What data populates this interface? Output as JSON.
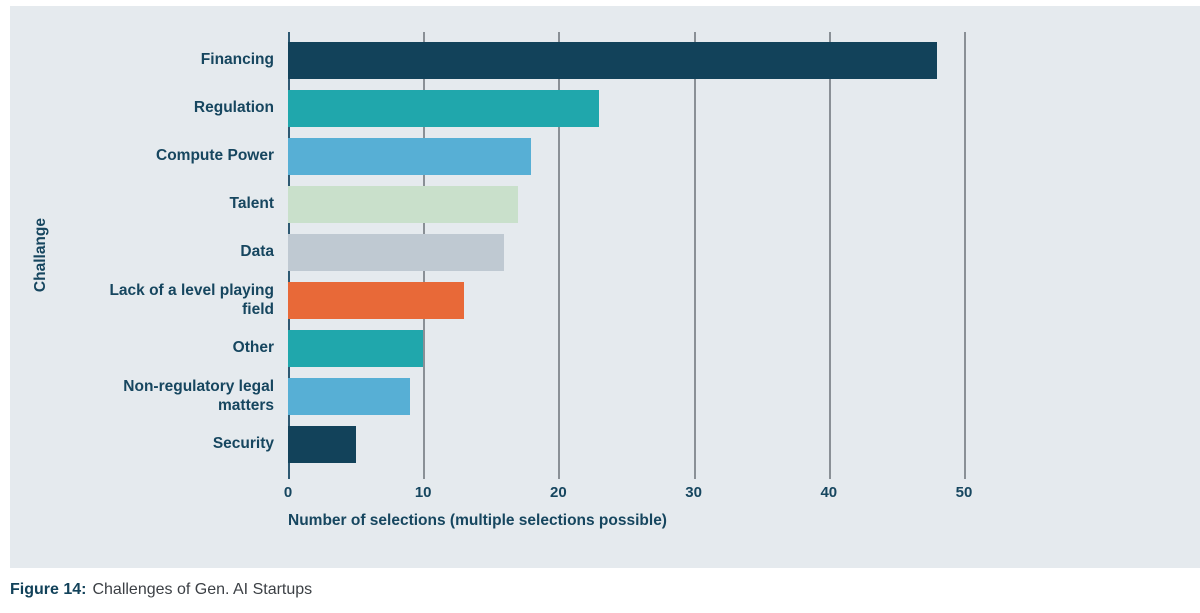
{
  "figure": {
    "caption_label": "Figure 14:",
    "caption_text": "Challenges of Gen. AI Startups"
  },
  "chart_data": {
    "type": "bar",
    "orientation": "horizontal",
    "title": "",
    "categories": [
      "Financing",
      "Regulation",
      "Compute Power",
      "Talent",
      "Data",
      "Lack of a level playing field",
      "Other",
      "Non-regulatory legal matters",
      "Security"
    ],
    "values": [
      48,
      23,
      18,
      17,
      16,
      13,
      10,
      9,
      5
    ],
    "bar_colors": [
      "#12425A",
      "#20A7AC",
      "#57AFD5",
      "#C9E0CB",
      "#BFC9D2",
      "#E86938",
      "#20A7AC",
      "#57AFD5",
      "#12425A"
    ],
    "xlabel": "Number of selections (multiple selections possible)",
    "ylabel": "Challange",
    "xlim": [
      0,
      50
    ],
    "xticks": [
      0,
      10,
      20,
      30,
      40,
      50
    ],
    "grid": true,
    "legend": "none",
    "plot_background": "#E5EAEE"
  },
  "style": {
    "text_color": "#16465F",
    "axis_line_color": "#2E5972",
    "gridline_color": "#8A9096",
    "caption_label_color": "#12425A",
    "caption_text_color": "#3C4045"
  }
}
